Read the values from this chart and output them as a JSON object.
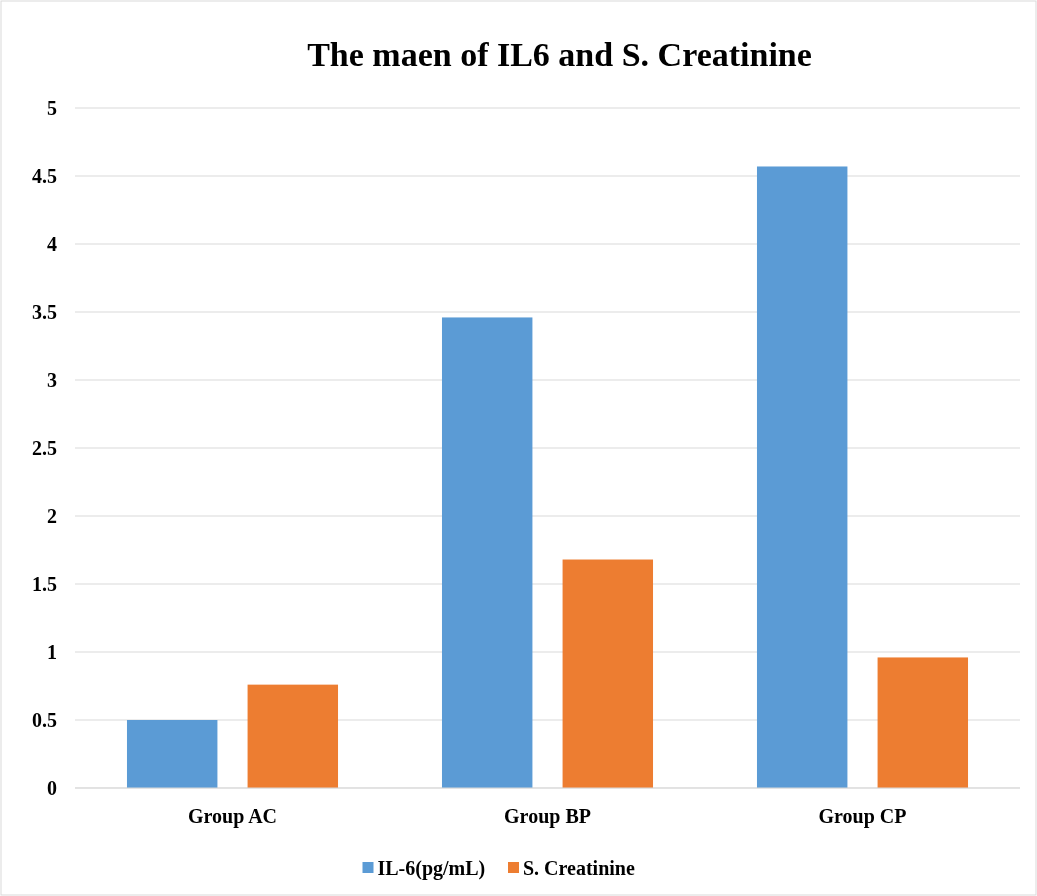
{
  "chart_data": {
    "type": "bar",
    "title": "The maen of IL6 and S. Creatinine",
    "categories": [
      "Group AC",
      "Group BP",
      "Group CP"
    ],
    "series": [
      {
        "name": "IL-6(pg/mL)",
        "color": "#5b9bd5",
        "values": [
          0.5,
          3.46,
          4.57
        ]
      },
      {
        "name": "S. Creatinine",
        "color": "#ed7d31",
        "values": [
          0.76,
          1.68,
          0.96
        ]
      }
    ],
    "ylim": [
      0,
      5
    ],
    "yticks": [
      0,
      {
        "value": 0.5,
        "label": "0.5"
      },
      1,
      {
        "value": 1.5,
        "label": "1.5"
      },
      2,
      {
        "value": 2.5,
        "label": "2.5"
      },
      3,
      {
        "value": 3.5,
        "label": "3.5"
      },
      4,
      {
        "value": 4.5,
        "label": "4.5"
      },
      5
    ],
    "grid": "y",
    "legend": "bottom"
  }
}
